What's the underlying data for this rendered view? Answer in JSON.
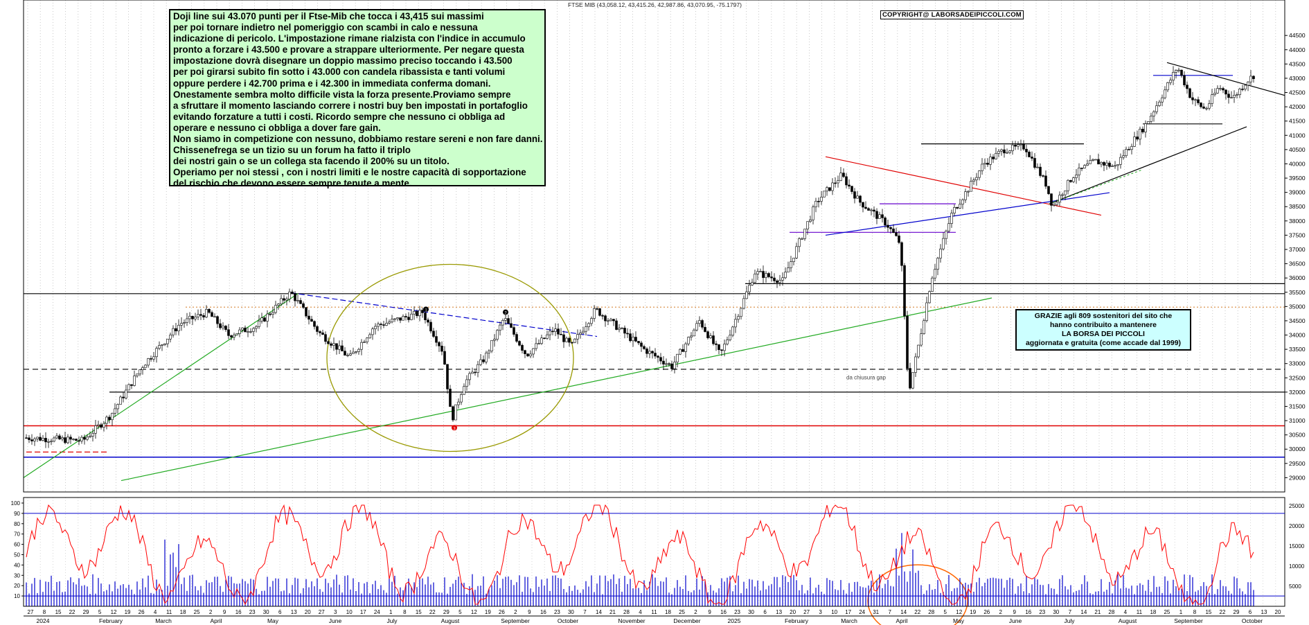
{
  "header": {
    "text": "FTSE MIB (43,058.12, 43,415.26, 42,987.86, 43,070.95, -75.1797)"
  },
  "copyright": "COPYRIGHT@ LABORSADEIPICCOLI.COM",
  "note": {
    "lines": [
      "Doji line sui 43.070 punti per il Ftse-Mib che tocca i 43,415 sui massimi",
      "per poi tornare indietro nel pomeriggio con scambi in calo e nessuna",
      "indicazione di pericolo. L'impostazione rimane rialzista con l'indice in accumulo",
      "pronto a forzare i 43.500 e provare a strappare ulteriormente. Per negare questa",
      "impostazione dovrà disegnare un doppio massimo preciso toccando i 43.500",
      "per poi girarsi subito fin sotto i 43.000 con candela ribassista e tanti volumi",
      "oppure perdere i 42.700 prima e i 42.300 in immediata conferma domani.",
      "Onestamente sembra molto difficile vista la forza presente.Proviamo sempre",
      "a sfruttare il momento lasciando correre i nostri buy ben impostati in portafoglio",
      "evitando forzature a tutti i costi. Ricordo sempre che nessuno ci obbliga ad",
      "operare e nessuno ci obbliga a dover fare gain.",
      "Non siamo in competizione con nessuno, dobbiamo restare sereni e non fare danni.",
      "Chissenefrega se un tizio su un forum ha fatto il triplo",
      "dei nostri gain o se un collega sta facendo il 200%  su un titolo.",
      "Operiamo per noi stessi , con i nostri limiti e le nostre capacità di sopportazione",
      "del rischio che devono essere sempre tenute a mente."
    ]
  },
  "thanks": {
    "lines": [
      "GRAZIE  agli 809  sostenitori del sito che",
      "hanno contribuito a mantenere",
      "LA BORSA DEI PICCOLI",
      "aggiornata e gratuita (come accade dal 1999)"
    ]
  },
  "gap_label": "da chiusura gap",
  "colors": {
    "up": "#ffffff",
    "down": "#000000",
    "oscillator": "#ff0000",
    "volume": "#0000ff",
    "red_line": "#e00000",
    "blue_line": "#0000cc",
    "green_line": "#22aa22",
    "ellipse": "#999900"
  },
  "chart_data": {
    "type": "candlestick",
    "title": "FTSE MIB (43,058.12, 43,415.26, 42,987.86, 43,070.95, -75.1797)",
    "ylim": [
      28500,
      45500
    ],
    "ytick_labels": [
      "29000",
      "29500",
      "30000",
      "30500",
      "31000",
      "31500",
      "32000",
      "32500",
      "33000",
      "33500",
      "34000",
      "34500",
      "35000",
      "35500",
      "36000",
      "36500",
      "37000",
      "37500",
      "38000",
      "38500",
      "39000",
      "39500",
      "40000",
      "40500",
      "41000",
      "41500",
      "42000",
      "42500",
      "43000",
      "43500",
      "44000",
      "44500"
    ],
    "osc_ylim": [
      0,
      100
    ],
    "osc_ticks": [
      "10",
      "20",
      "30",
      "40",
      "50",
      "60",
      "70",
      "80",
      "90",
      "100"
    ],
    "vol_ticks": [
      "5000",
      "10000",
      "15000",
      "20000",
      "25000"
    ],
    "x_day_labels": [
      "27",
      "8",
      "15",
      "22",
      "29",
      "5",
      "12",
      "19",
      "26",
      "4",
      "11",
      "18",
      "25",
      "2",
      "9",
      "16",
      "23",
      "30",
      "6",
      "13",
      "20",
      "27",
      "3",
      "10",
      "17",
      "24",
      "1",
      "8",
      "15",
      "22",
      "29",
      "5",
      "12",
      "19",
      "26",
      "2",
      "9",
      "16",
      "23",
      "30",
      "7",
      "14",
      "21",
      "28",
      "4",
      "11",
      "18",
      "25",
      "2",
      "9",
      "16",
      "23",
      "30",
      "6",
      "13",
      "20",
      "27",
      "3",
      "10",
      "17",
      "24",
      "31",
      "7",
      "14",
      "22",
      "28",
      "5",
      "12",
      "19",
      "26",
      "2",
      "9",
      "16",
      "23",
      "30",
      "7",
      "14",
      "21",
      "28",
      "4",
      "11",
      "18",
      "25",
      "1",
      "8",
      "15",
      "22",
      "29",
      "6",
      "13",
      "20"
    ],
    "x_month_labels": [
      "2024",
      "February",
      "March",
      "April",
      "May",
      "June",
      "July",
      "August",
      "September",
      "October",
      "November",
      "December",
      "2025",
      "February",
      "March",
      "April",
      "May",
      "June",
      "July",
      "August",
      "September",
      "October"
    ],
    "key_levels": [
      29900,
      30800,
      32000,
      32800,
      35000,
      35800,
      37600,
      38600,
      40700,
      41400,
      43100
    ],
    "last_close": 43070.95,
    "last_high": 43415.26,
    "last_low": 42987.86,
    "markers": [
      "1",
      "2",
      "3"
    ]
  }
}
